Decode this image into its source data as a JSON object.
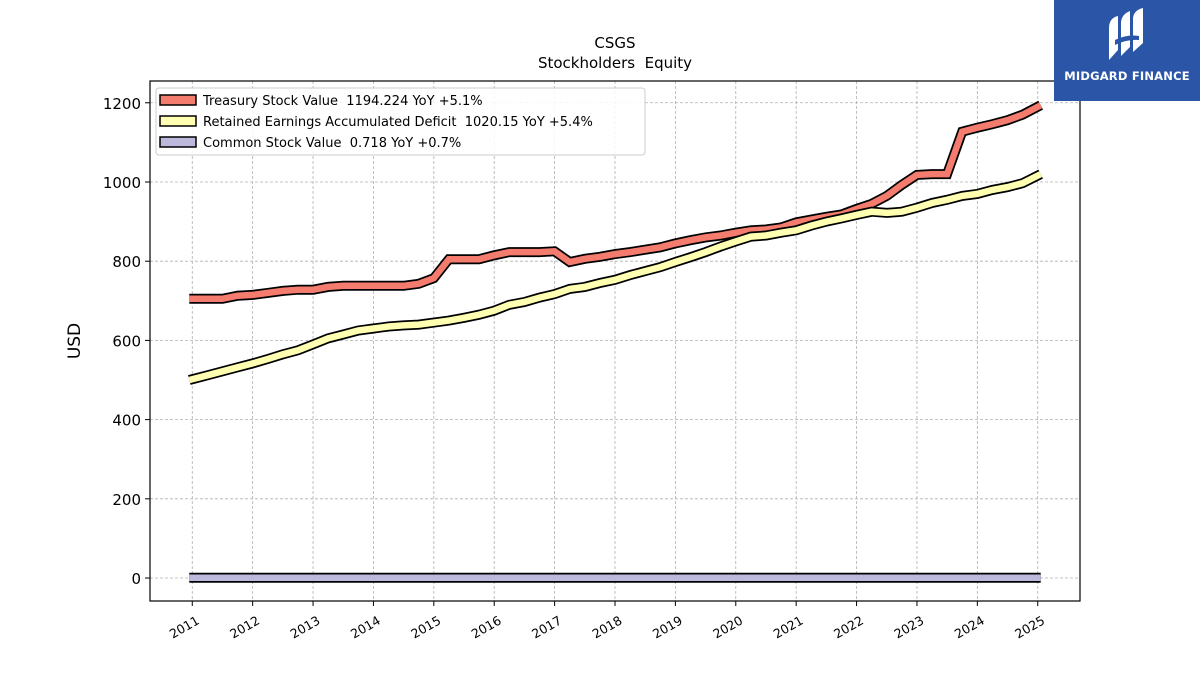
{
  "chart_data": {
    "type": "line",
    "title": "CSGS",
    "subtitle": "Stockholders  Equity",
    "xlabel": "",
    "ylabel": "USD",
    "ylim": [
      -58,
      1255
    ],
    "xlim": [
      2010.3,
      2025.7
    ],
    "yticks": [
      0,
      200,
      400,
      600,
      800,
      1000,
      1200
    ],
    "xticks": [
      2011,
      2012,
      2013,
      2014,
      2015,
      2016,
      2017,
      2018,
      2019,
      2020,
      2021,
      2022,
      2023,
      2024,
      2025
    ],
    "xtick_labels": [
      "2011",
      "2012",
      "2013",
      "2014",
      "2015",
      "2016",
      "2017",
      "2018",
      "2019",
      "2020",
      "2021",
      "2022",
      "2023",
      "2024",
      "2025"
    ],
    "grid": true,
    "legend_position": "top-left",
    "series": [
      {
        "name": "Treasury Stock Value  1194.224 YoY +5.1%",
        "color": "#f47c6e",
        "points": [
          [
            2010.95,
            705
          ],
          [
            2011.25,
            705
          ],
          [
            2011.5,
            705
          ],
          [
            2011.75,
            713
          ],
          [
            2012.0,
            715
          ],
          [
            2012.25,
            720
          ],
          [
            2012.5,
            725
          ],
          [
            2012.75,
            728
          ],
          [
            2013.0,
            728
          ],
          [
            2013.25,
            735
          ],
          [
            2013.5,
            738
          ],
          [
            2013.75,
            738
          ],
          [
            2014.0,
            738
          ],
          [
            2014.25,
            738
          ],
          [
            2014.5,
            738
          ],
          [
            2014.75,
            743
          ],
          [
            2015.0,
            757
          ],
          [
            2015.25,
            805
          ],
          [
            2015.5,
            805
          ],
          [
            2015.75,
            805
          ],
          [
            2016.0,
            815
          ],
          [
            2016.25,
            823
          ],
          [
            2016.5,
            823
          ],
          [
            2016.75,
            823
          ],
          [
            2017.0,
            825
          ],
          [
            2017.25,
            798
          ],
          [
            2017.5,
            806
          ],
          [
            2017.75,
            811
          ],
          [
            2018.0,
            818
          ],
          [
            2018.25,
            823
          ],
          [
            2018.5,
            829
          ],
          [
            2018.75,
            835
          ],
          [
            2019.0,
            845
          ],
          [
            2019.25,
            853
          ],
          [
            2019.5,
            860
          ],
          [
            2019.75,
            865
          ],
          [
            2020.0,
            872
          ],
          [
            2020.25,
            878
          ],
          [
            2020.5,
            880
          ],
          [
            2020.75,
            885
          ],
          [
            2021.0,
            898
          ],
          [
            2021.25,
            905
          ],
          [
            2021.5,
            912
          ],
          [
            2021.75,
            918
          ],
          [
            2022.0,
            932
          ],
          [
            2022.25,
            945
          ],
          [
            2022.5,
            965
          ],
          [
            2022.75,
            993
          ],
          [
            2023.0,
            1018
          ],
          [
            2023.25,
            1020
          ],
          [
            2023.5,
            1020
          ],
          [
            2023.75,
            1127
          ],
          [
            2024.0,
            1137
          ],
          [
            2024.25,
            1146
          ],
          [
            2024.5,
            1156
          ],
          [
            2024.75,
            1170
          ],
          [
            2025.05,
            1194
          ]
        ]
      },
      {
        "name": "Retained Earnings Accumulated Deficit  1020.15 YoY +5.4%",
        "color": "#ffffb2",
        "points": [
          [
            2010.95,
            500
          ],
          [
            2011.25,
            512
          ],
          [
            2011.5,
            522
          ],
          [
            2011.75,
            532
          ],
          [
            2012.0,
            542
          ],
          [
            2012.25,
            553
          ],
          [
            2012.5,
            565
          ],
          [
            2012.75,
            575
          ],
          [
            2013.0,
            590
          ],
          [
            2013.25,
            605
          ],
          [
            2013.5,
            615
          ],
          [
            2013.75,
            625
          ],
          [
            2014.0,
            630
          ],
          [
            2014.25,
            635
          ],
          [
            2014.5,
            638
          ],
          [
            2014.75,
            640
          ],
          [
            2015.0,
            645
          ],
          [
            2015.25,
            650
          ],
          [
            2015.5,
            657
          ],
          [
            2015.75,
            665
          ],
          [
            2016.0,
            675
          ],
          [
            2016.25,
            690
          ],
          [
            2016.5,
            697
          ],
          [
            2016.75,
            708
          ],
          [
            2017.0,
            717
          ],
          [
            2017.25,
            730
          ],
          [
            2017.5,
            735
          ],
          [
            2017.75,
            745
          ],
          [
            2018.0,
            753
          ],
          [
            2018.25,
            765
          ],
          [
            2018.5,
            775
          ],
          [
            2018.75,
            785
          ],
          [
            2019.0,
            798
          ],
          [
            2019.25,
            810
          ],
          [
            2019.5,
            823
          ],
          [
            2019.75,
            837
          ],
          [
            2020.0,
            850
          ],
          [
            2020.25,
            862
          ],
          [
            2020.5,
            865
          ],
          [
            2020.75,
            872
          ],
          [
            2021.0,
            878
          ],
          [
            2021.25,
            890
          ],
          [
            2021.5,
            900
          ],
          [
            2021.75,
            908
          ],
          [
            2022.0,
            917
          ],
          [
            2022.25,
            925
          ],
          [
            2022.5,
            922
          ],
          [
            2022.75,
            925
          ],
          [
            2023.0,
            935
          ],
          [
            2023.25,
            947
          ],
          [
            2023.5,
            955
          ],
          [
            2023.75,
            965
          ],
          [
            2024.0,
            970
          ],
          [
            2024.25,
            980
          ],
          [
            2024.5,
            987
          ],
          [
            2024.75,
            997
          ],
          [
            2025.05,
            1020
          ]
        ]
      },
      {
        "name": "Common Stock Value  0.718 YoY +0.7%",
        "color": "#bcb9dc",
        "points": [
          [
            2010.95,
            0.7
          ],
          [
            2025.05,
            0.718
          ]
        ]
      }
    ]
  },
  "logo": {
    "name": "MIDGARD FINANCE",
    "background": "#2b56a8"
  }
}
